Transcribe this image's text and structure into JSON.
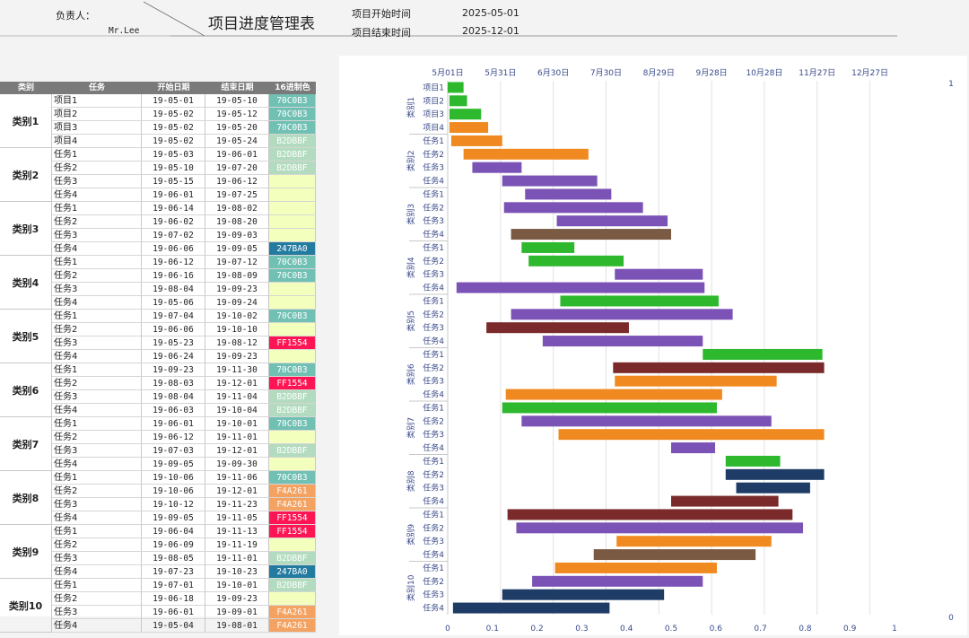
{
  "header": {
    "owner_label": "负责人：",
    "owner_name": "Mr.Lee",
    "title": "项目进度管理表",
    "start_label": "项目开始时间",
    "start_value": "2025-05-01",
    "end_label": "项目结束时间",
    "end_value": "2025-12-01"
  },
  "table": {
    "columns": [
      "类别",
      "任务",
      "开始日期",
      "结束日期",
      "16进制色"
    ],
    "categories": [
      {
        "name": "类别1",
        "rows": [
          {
            "task": "项目1",
            "start": "19-05-01",
            "end": "19-05-10",
            "hex": "70C0B3"
          },
          {
            "task": "项目2",
            "start": "19-05-02",
            "end": "19-05-12",
            "hex": "70C0B3"
          },
          {
            "task": "项目3",
            "start": "19-05-02",
            "end": "19-05-20",
            "hex": "70C0B3"
          },
          {
            "task": "项目4",
            "start": "19-05-02",
            "end": "19-05-24",
            "hex": "B2DBBF"
          }
        ]
      },
      {
        "name": "类别2",
        "rows": [
          {
            "task": "任务1",
            "start": "19-05-03",
            "end": "19-06-01",
            "hex": "B2DBBF"
          },
          {
            "task": "任务2",
            "start": "19-05-10",
            "end": "19-07-20",
            "hex": "B2DBBF"
          },
          {
            "task": "任务3",
            "start": "19-05-15",
            "end": "19-06-12",
            "hex": "F3FFBD"
          },
          {
            "task": "任务4",
            "start": "19-06-01",
            "end": "19-07-25",
            "hex": "F3FFBD"
          }
        ]
      },
      {
        "name": "类别3",
        "rows": [
          {
            "task": "任务1",
            "start": "19-06-14",
            "end": "19-08-02",
            "hex": "F3FFBD"
          },
          {
            "task": "任务2",
            "start": "19-06-02",
            "end": "19-08-20",
            "hex": "F3FFBD"
          },
          {
            "task": "任务3",
            "start": "19-07-02",
            "end": "19-09-03",
            "hex": "F3FFBD"
          },
          {
            "task": "任务4",
            "start": "19-06-06",
            "end": "19-09-05",
            "hex": "247BA0"
          }
        ]
      },
      {
        "name": "类别4",
        "rows": [
          {
            "task": "任务1",
            "start": "19-06-12",
            "end": "19-07-12",
            "hex": "70C0B3"
          },
          {
            "task": "任务2",
            "start": "19-06-16",
            "end": "19-08-09",
            "hex": "70C0B3"
          },
          {
            "task": "任务3",
            "start": "19-08-04",
            "end": "19-09-23",
            "hex": "F3FFBD"
          },
          {
            "task": "任务4",
            "start": "19-05-06",
            "end": "19-09-24",
            "hex": "F3FFBD"
          }
        ]
      },
      {
        "name": "类别5",
        "rows": [
          {
            "task": "任务1",
            "start": "19-07-04",
            "end": "19-10-02",
            "hex": "70C0B3"
          },
          {
            "task": "任务2",
            "start": "19-06-06",
            "end": "19-10-10",
            "hex": "F3FFBD"
          },
          {
            "task": "任务3",
            "start": "19-05-23",
            "end": "19-08-12",
            "hex": "FF1554"
          },
          {
            "task": "任务4",
            "start": "19-06-24",
            "end": "19-09-23",
            "hex": "F3FFBD"
          }
        ]
      },
      {
        "name": "类别6",
        "rows": [
          {
            "task": "任务1",
            "start": "19-09-23",
            "end": "19-11-30",
            "hex": "70C0B3"
          },
          {
            "task": "任务2",
            "start": "19-08-03",
            "end": "19-12-01",
            "hex": "FF1554"
          },
          {
            "task": "任务3",
            "start": "19-08-04",
            "end": "19-11-04",
            "hex": "B2DBBF"
          },
          {
            "task": "任务4",
            "start": "19-06-03",
            "end": "19-10-04",
            "hex": "B2DBBF"
          }
        ]
      },
      {
        "name": "类别7",
        "rows": [
          {
            "task": "任务1",
            "start": "19-06-01",
            "end": "19-10-01",
            "hex": "70C0B3"
          },
          {
            "task": "任务2",
            "start": "19-06-12",
            "end": "19-11-01",
            "hex": "F3FFBD"
          },
          {
            "task": "任务3",
            "start": "19-07-03",
            "end": "19-12-01",
            "hex": "B2DBBF"
          },
          {
            "task": "任务4",
            "start": "19-09-05",
            "end": "19-09-30",
            "hex": "F3FFBD"
          }
        ]
      },
      {
        "name": "类别8",
        "rows": [
          {
            "task": "任务1",
            "start": "19-10-06",
            "end": "19-11-06",
            "hex": "70C0B3"
          },
          {
            "task": "任务2",
            "start": "19-10-06",
            "end": "19-12-01",
            "hex": "F4A261"
          },
          {
            "task": "任务3",
            "start": "19-10-12",
            "end": "19-11-23",
            "hex": "F4A261"
          },
          {
            "task": "任务4",
            "start": "19-09-05",
            "end": "19-11-05",
            "hex": "FF1554"
          }
        ]
      },
      {
        "name": "类别9",
        "rows": [
          {
            "task": "任务1",
            "start": "19-06-04",
            "end": "19-11-13",
            "hex": "FF1554"
          },
          {
            "task": "任务2",
            "start": "19-06-09",
            "end": "19-11-19",
            "hex": "F3FFBD"
          },
          {
            "task": "任务3",
            "start": "19-08-05",
            "end": "19-11-01",
            "hex": "B2DBBF"
          },
          {
            "task": "任务4",
            "start": "19-07-23",
            "end": "19-10-23",
            "hex": "247BA0"
          }
        ]
      },
      {
        "name": "类别10",
        "rows": [
          {
            "task": "任务1",
            "start": "19-07-01",
            "end": "19-10-01",
            "hex": "B2DBBF"
          },
          {
            "task": "任务2",
            "start": "19-06-18",
            "end": "19-09-23",
            "hex": "F3FFBD"
          },
          {
            "task": "任务3",
            "start": "19-06-01",
            "end": "19-09-01",
            "hex": "F4A261"
          },
          {
            "task": "任务4",
            "start": "19-05-04",
            "end": "19-08-01",
            "hex": "F4A261"
          }
        ]
      }
    ]
  },
  "hex_colors": {
    "70C0B3": "#70C0B3",
    "B2DBBF": "#B2DBBF",
    "F3FFBD": "#F3FFBD",
    "247BA0": "#247BA0",
    "FF1554": "#FF1554",
    "F4A261": "#F4A261"
  },
  "chart_data": {
    "type": "bar",
    "orientation": "horizontal",
    "x_axis_top_ticks": [
      "5月01日",
      "5月31日",
      "6月30日",
      "7月30日",
      "8月29日",
      "9月28日",
      "10月28日",
      "11月27日",
      "12月27日"
    ],
    "x_axis_bottom_ticks": [
      "0",
      "0.1",
      "0.2",
      "0.3",
      "0.4",
      "0.5",
      "0.6",
      "0.7",
      "0.8",
      "0.9",
      "1"
    ],
    "secondary_y_ticks": [
      "1",
      "0"
    ],
    "x_top_range": [
      "2025-05-01",
      "2026-01-10"
    ],
    "grid": "vertical",
    "groups": [
      {
        "name": "类别1",
        "tasks": [
          {
            "label": "项目1",
            "start": "2025-05-01",
            "end": "2025-05-10",
            "color": "#2EB82E"
          },
          {
            "label": "项目2",
            "start": "2025-05-02",
            "end": "2025-05-12",
            "color": "#2EB82E"
          },
          {
            "label": "项目3",
            "start": "2025-05-02",
            "end": "2025-05-20",
            "color": "#2EB82E"
          },
          {
            "label": "项目4",
            "start": "2025-05-02",
            "end": "2025-05-24",
            "color": "#F08A20"
          }
        ]
      },
      {
        "name": "类别2",
        "tasks": [
          {
            "label": "任务1",
            "start": "2025-05-03",
            "end": "2025-06-01",
            "color": "#F08A20"
          },
          {
            "label": "任务2",
            "start": "2025-05-10",
            "end": "2025-07-20",
            "color": "#F08A20"
          },
          {
            "label": "任务3",
            "start": "2025-05-15",
            "end": "2025-06-12",
            "color": "#7B52B5"
          },
          {
            "label": "任务4",
            "start": "2025-06-01",
            "end": "2025-07-25",
            "color": "#7B52B5"
          }
        ]
      },
      {
        "name": "类别3",
        "tasks": [
          {
            "label": "任务1",
            "start": "2025-06-14",
            "end": "2025-08-02",
            "color": "#7B52B5"
          },
          {
            "label": "任务2",
            "start": "2025-06-02",
            "end": "2025-08-20",
            "color": "#7B52B5"
          },
          {
            "label": "任务3",
            "start": "2025-07-02",
            "end": "2025-09-03",
            "color": "#7B52B5"
          },
          {
            "label": "任务4",
            "start": "2025-06-06",
            "end": "2025-09-05",
            "color": "#7A5A42"
          }
        ]
      },
      {
        "name": "类别4",
        "tasks": [
          {
            "label": "任务1",
            "start": "2025-06-12",
            "end": "2025-07-12",
            "color": "#2EB82E"
          },
          {
            "label": "任务2",
            "start": "2025-06-16",
            "end": "2025-08-09",
            "color": "#2EB82E"
          },
          {
            "label": "任务3",
            "start": "2025-08-04",
            "end": "2025-09-23",
            "color": "#7B52B5"
          },
          {
            "label": "任务4",
            "start": "2025-05-06",
            "end": "2025-09-24",
            "color": "#7B52B5"
          }
        ]
      },
      {
        "name": "类别5",
        "tasks": [
          {
            "label": "任务1",
            "start": "2025-07-04",
            "end": "2025-10-02",
            "color": "#2EB82E"
          },
          {
            "label": "任务2",
            "start": "2025-06-06",
            "end": "2025-10-10",
            "color": "#7B52B5"
          },
          {
            "label": "任务3",
            "start": "2025-05-23",
            "end": "2025-08-12",
            "color": "#7A2A2A"
          },
          {
            "label": "任务4",
            "start": "2025-06-24",
            "end": "2025-09-23",
            "color": "#7B52B5"
          }
        ]
      },
      {
        "name": "类别6",
        "tasks": [
          {
            "label": "任务1",
            "start": "2025-09-23",
            "end": "2025-11-30",
            "color": "#2EB82E"
          },
          {
            "label": "任务2",
            "start": "2025-08-03",
            "end": "2025-12-01",
            "color": "#7A2A2A"
          },
          {
            "label": "任务3",
            "start": "2025-08-04",
            "end": "2025-11-04",
            "color": "#F08A20"
          },
          {
            "label": "任务4",
            "start": "2025-06-03",
            "end": "2025-10-04",
            "color": "#F08A20"
          }
        ]
      },
      {
        "name": "类别7",
        "tasks": [
          {
            "label": "任务1",
            "start": "2025-06-01",
            "end": "2025-10-01",
            "color": "#2EB82E"
          },
          {
            "label": "任务2",
            "start": "2025-06-12",
            "end": "2025-11-01",
            "color": "#7B52B5"
          },
          {
            "label": "任务3",
            "start": "2025-07-03",
            "end": "2025-12-01",
            "color": "#F08A20"
          },
          {
            "label": "任务4",
            "start": "2025-09-05",
            "end": "2025-09-30",
            "color": "#7B52B5"
          }
        ]
      },
      {
        "name": "类别8",
        "tasks": [
          {
            "label": "任务1",
            "start": "2025-10-06",
            "end": "2025-11-06",
            "color": "#2EB82E"
          },
          {
            "label": "任务2",
            "start": "2025-10-06",
            "end": "2025-12-01",
            "color": "#1F3C66"
          },
          {
            "label": "任务3",
            "start": "2025-10-12",
            "end": "2025-11-23",
            "color": "#1F3C66"
          },
          {
            "label": "任务4",
            "start": "2025-09-05",
            "end": "2025-11-05",
            "color": "#7A2A2A"
          }
        ]
      },
      {
        "name": "类别9",
        "tasks": [
          {
            "label": "任务1",
            "start": "2025-06-04",
            "end": "2025-11-13",
            "color": "#7A2A2A"
          },
          {
            "label": "任务2",
            "start": "2025-06-09",
            "end": "2025-11-19",
            "color": "#7B52B5"
          },
          {
            "label": "任务3",
            "start": "2025-08-05",
            "end": "2025-11-01",
            "color": "#F08A20"
          },
          {
            "label": "任务4",
            "start": "2025-07-23",
            "end": "2025-10-23",
            "color": "#7A5A42"
          }
        ]
      },
      {
        "name": "类别10",
        "tasks": [
          {
            "label": "任务1",
            "start": "2025-07-01",
            "end": "2025-10-01",
            "color": "#F08A20"
          },
          {
            "label": "任务2",
            "start": "2025-06-18",
            "end": "2025-09-23",
            "color": "#7B52B5"
          },
          {
            "label": "任务3",
            "start": "2025-06-01",
            "end": "2025-09-01",
            "color": "#1F3C66"
          },
          {
            "label": "任务4",
            "start": "2025-05-04",
            "end": "2025-08-01",
            "color": "#1F3C66"
          }
        ]
      }
    ]
  }
}
